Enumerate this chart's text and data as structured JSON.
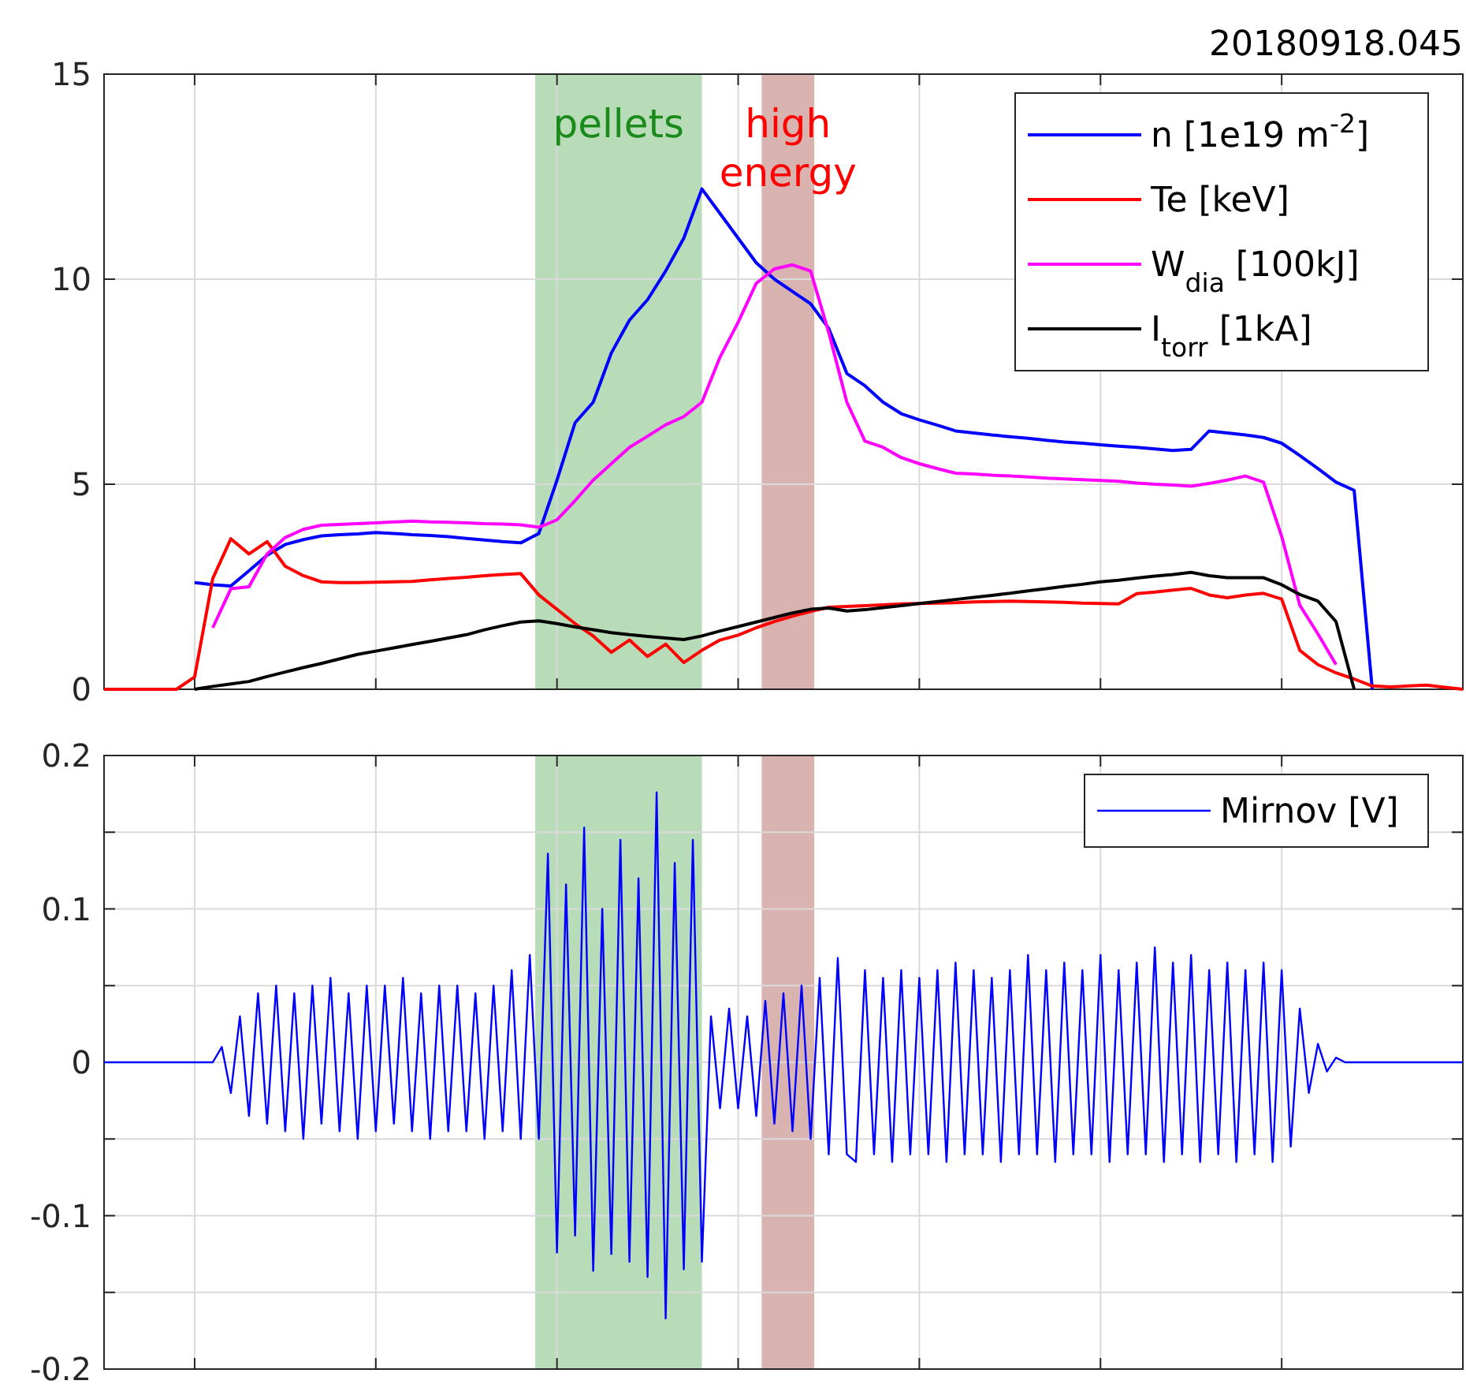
{
  "chart_data": [
    {
      "type": "line",
      "title": "20180918.045",
      "categories": [
        null,
        null,
        null,
        null,
        null,
        null,
        null,
        null,
        null,
        null,
        null,
        null,
        null,
        null,
        null,
        null,
        null,
        null,
        null,
        null,
        null,
        null,
        null,
        null,
        null,
        null,
        null,
        null,
        null,
        null,
        null,
        null,
        null,
        null,
        null,
        null,
        null,
        null,
        null,
        null,
        null,
        null,
        null,
        null,
        null,
        null,
        null,
        null,
        null,
        null,
        null,
        null,
        null,
        null,
        null,
        null,
        null,
        null,
        null,
        null,
        null,
        null,
        null,
        null,
        null,
        null,
        null,
        null,
        null,
        null,
        null,
        null,
        null,
        null,
        null,
        null
      ],
      "ylim": [
        0,
        15
      ],
      "yticks": [
        0,
        5,
        10,
        15
      ],
      "grid": true,
      "legend": "top right",
      "tick_labels": "y",
      "annotations": [
        "pellets",
        "high energy"
      ],
      "series": [
        {
          "name": "n [1e19 m$^{-2}$]",
          "color": "#0000ff",
          "values": [
            null,
            null,
            null,
            null,
            null,
            2.6,
            2.55,
            2.52,
            2.89,
            3.27,
            3.53,
            3.65,
            3.74,
            3.77,
            3.79,
            3.82,
            3.8,
            3.77,
            3.75,
            3.72,
            3.68,
            3.64,
            3.6,
            3.57,
            3.8,
            5.1,
            6.5,
            7.0,
            8.2,
            9.0,
            9.5,
            10.2,
            11.0,
            12.2,
            11.6,
            11.0,
            10.4,
            10.0,
            9.7,
            9.4,
            8.8,
            7.7,
            7.4,
            7.0,
            6.72,
            6.57,
            6.44,
            6.3,
            6.25,
            6.2,
            6.16,
            6.12,
            6.07,
            6.03,
            6.0,
            5.96,
            5.93,
            5.9,
            5.86,
            5.82,
            5.85,
            6.3,
            6.25,
            6.2,
            6.14,
            6.0,
            5.7,
            5.38,
            5.05,
            4.85,
            0,
            null,
            null,
            null,
            null,
            null
          ]
        },
        {
          "name": "Te [keV]",
          "color": "#ff0000",
          "values": [
            0,
            0,
            0,
            0,
            0,
            0.3,
            2.7,
            3.67,
            3.3,
            3.6,
            3.0,
            2.77,
            2.62,
            2.6,
            2.6,
            2.61,
            2.62,
            2.63,
            2.67,
            2.7,
            2.73,
            2.77,
            2.8,
            2.82,
            2.3,
            1.95,
            1.6,
            1.3,
            0.9,
            1.2,
            0.8,
            1.1,
            0.65,
            0.95,
            1.2,
            1.32,
            1.5,
            1.65,
            1.78,
            1.9,
            2.0,
            2.02,
            2.04,
            2.06,
            2.08,
            2.09,
            2.1,
            2.11,
            2.13,
            2.14,
            2.15,
            2.14,
            2.13,
            2.12,
            2.1,
            2.09,
            2.08,
            2.33,
            2.37,
            2.42,
            2.46,
            2.3,
            2.23,
            2.3,
            2.34,
            2.2,
            0.95,
            0.6,
            0.4,
            0.25,
            0.08,
            0.06,
            0.08,
            0.1,
            0.05,
            0
          ]
        },
        {
          "name": "W$_{dia}$ [100kJ]",
          "color": "#ff00ff",
          "values": [
            null,
            null,
            null,
            null,
            null,
            null,
            1.5,
            2.45,
            2.5,
            3.3,
            3.7,
            3.9,
            4.0,
            4.02,
            4.04,
            4.06,
            4.08,
            4.1,
            4.08,
            4.07,
            4.06,
            4.04,
            4.03,
            4.01,
            3.95,
            4.13,
            4.6,
            5.1,
            5.5,
            5.9,
            6.17,
            6.45,
            6.65,
            7.0,
            8.1,
            8.95,
            9.9,
            10.25,
            10.35,
            10.2,
            8.7,
            7.0,
            6.05,
            5.9,
            5.65,
            5.5,
            5.38,
            5.27,
            5.25,
            5.22,
            5.2,
            5.18,
            5.15,
            5.13,
            5.11,
            5.09,
            5.07,
            5.03,
            5.0,
            4.98,
            4.95,
            5.02,
            5.1,
            5.2,
            5.05,
            3.73,
            2.05,
            1.35,
            0.6,
            null,
            null,
            null,
            null,
            null,
            null,
            null
          ]
        },
        {
          "name": "I$_{torr}$ [1kA]",
          "color": "#000000",
          "values": [
            null,
            null,
            null,
            null,
            null,
            0,
            0.07,
            0.13,
            0.19,
            0.31,
            0.42,
            0.53,
            0.63,
            0.74,
            0.85,
            0.93,
            1.01,
            1.09,
            1.17,
            1.25,
            1.33,
            1.45,
            1.55,
            1.64,
            1.67,
            1.6,
            1.52,
            1.45,
            1.38,
            1.33,
            1.29,
            1.25,
            1.21,
            1.3,
            1.42,
            1.53,
            1.64,
            1.75,
            1.86,
            1.95,
            1.98,
            1.91,
            1.94,
            1.99,
            2.04,
            2.09,
            2.14,
            2.19,
            2.24,
            2.29,
            2.34,
            2.4,
            2.45,
            2.51,
            2.56,
            2.62,
            2.66,
            2.71,
            2.76,
            2.8,
            2.85,
            2.77,
            2.72,
            2.72,
            2.72,
            2.55,
            2.31,
            2.15,
            1.65,
            0,
            null,
            null,
            null,
            null,
            null,
            null
          ]
        }
      ]
    },
    {
      "type": "line",
      "categories": [
        null,
        null,
        null,
        null,
        null,
        null,
        null,
        null,
        null,
        null,
        null,
        null,
        null,
        null,
        null,
        null,
        null,
        null,
        null,
        null,
        null,
        null,
        null,
        null,
        null,
        null,
        null,
        null,
        null,
        null,
        null,
        null,
        null,
        null,
        null,
        null,
        null,
        null,
        null,
        null,
        null,
        null,
        null,
        null,
        null,
        null,
        null,
        null,
        null,
        null,
        null,
        null,
        null,
        null,
        null,
        null,
        null,
        null,
        null,
        null,
        null,
        null,
        null,
        null,
        null,
        null,
        null,
        null,
        null,
        null,
        null,
        null,
        null,
        null,
        null,
        null,
        null,
        null,
        null,
        null,
        null,
        null,
        null,
        null,
        null,
        null,
        null,
        null,
        null,
        null,
        null,
        null,
        null,
        null,
        null,
        null,
        null,
        null,
        null,
        null,
        null,
        null,
        null,
        null,
        null,
        null,
        null,
        null,
        null,
        null,
        null,
        null,
        null,
        null,
        null,
        null,
        null,
        null,
        null,
        null,
        null,
        null,
        null,
        null,
        null,
        null,
        null,
        null,
        null,
        null,
        null,
        null,
        null,
        null,
        null,
        null,
        null,
        null,
        null,
        null,
        null,
        null,
        null,
        null,
        null,
        null,
        null,
        null,
        null,
        null,
        null
      ],
      "ylim": [
        -0.2,
        0.2
      ],
      "yticks": [
        -0.2,
        {
          "value": -0.15,
          "label": null
        },
        -0.1,
        {
          "value": -0.05,
          "label": null
        },
        0,
        {
          "value": 0.05,
          "label": null
        },
        0.1,
        {
          "value": 0.15,
          "label": null
        },
        0.2
      ],
      "grid": true,
      "legend": "top right",
      "tick_labels": "y",
      "series": [
        {
          "name": "Mirnov [V]",
          "color": "#0000ff",
          "values": [
            0,
            0,
            0,
            0,
            0,
            0,
            0,
            0,
            0,
            0,
            0,
            0,
            0,
            0.01,
            -0.02,
            0.03,
            -0.035,
            0.045,
            -0.04,
            0.05,
            -0.045,
            0.045,
            -0.05,
            0.05,
            -0.04,
            0.055,
            -0.045,
            0.045,
            -0.05,
            0.05,
            -0.045,
            0.05,
            -0.04,
            0.055,
            -0.045,
            0.045,
            -0.05,
            0.05,
            -0.045,
            0.05,
            -0.045,
            0.045,
            -0.05,
            0.05,
            -0.045,
            0.06,
            -0.05,
            0.07,
            -0.05,
            0.136,
            -0.124,
            0.116,
            -0.113,
            0.153,
            -0.136,
            0.1,
            -0.125,
            0.145,
            -0.13,
            0.12,
            -0.14,
            0.176,
            -0.167,
            0.13,
            -0.135,
            0.145,
            -0.13,
            0.03,
            -0.03,
            0.035,
            -0.03,
            0.03,
            -0.035,
            0.04,
            -0.04,
            0.045,
            -0.045,
            0.05,
            -0.05,
            0.055,
            -0.06,
            0.068,
            -0.06,
            -0.065,
            0.06,
            -0.06,
            0.055,
            -0.065,
            0.06,
            -0.06,
            0.055,
            -0.06,
            0.06,
            -0.065,
            0.065,
            -0.06,
            0.06,
            -0.06,
            0.055,
            -0.065,
            0.06,
            -0.06,
            0.07,
            -0.06,
            0.06,
            -0.065,
            0.065,
            -0.06,
            0.06,
            -0.06,
            0.07,
            -0.065,
            0.06,
            -0.06,
            0.065,
            -0.06,
            0.075,
            -0.065,
            0.065,
            -0.06,
            0.07,
            -0.065,
            0.06,
            -0.06,
            0.065,
            -0.065,
            0.06,
            -0.06,
            0.065,
            -0.065,
            0.06,
            -0.055,
            0.035,
            -0.02,
            0.012,
            -0.006,
            0.003,
            0,
            0,
            0,
            0,
            0,
            0,
            0,
            0,
            0,
            0,
            0,
            0,
            0,
            0
          ]
        }
      ]
    }
  ]
}
